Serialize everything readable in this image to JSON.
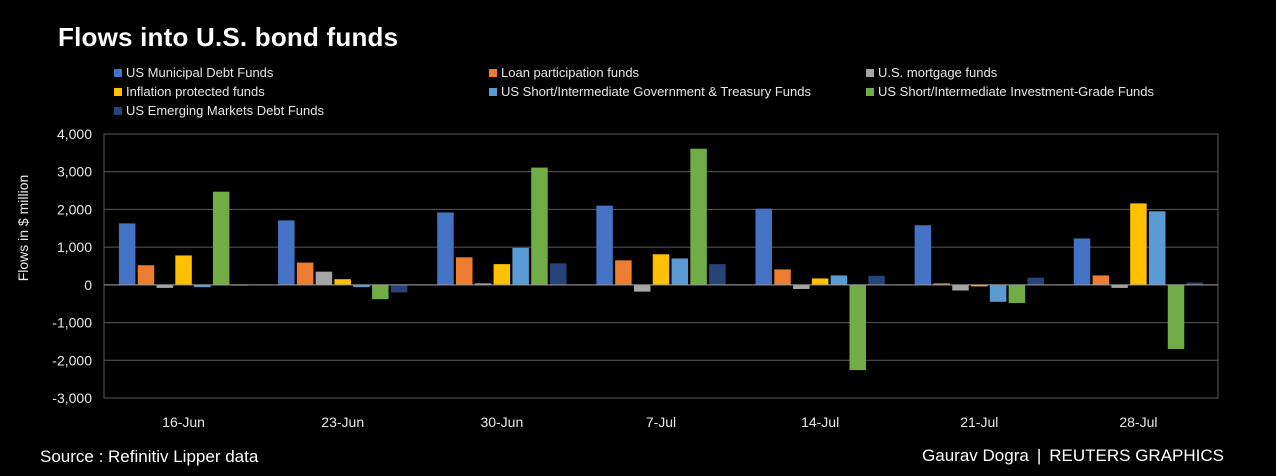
{
  "title": "Flows into U.S. bond funds",
  "footer": {
    "source": "Source : Refinitiv Lipper data",
    "author": "Gaurav Dogra",
    "separator": "|",
    "brand": "REUTERS GRAPHICS"
  },
  "colors": {
    "background": "#000000",
    "gridline": "#5a5a5a",
    "axis": "#9a9a9a",
    "text": "#ffffff"
  },
  "chart_data": {
    "type": "bar",
    "title": "Flows into U.S. bond funds",
    "xlabel": "",
    "ylabel": "Flows in $ million",
    "ylim": [
      -3000,
      4000
    ],
    "yticks": [
      -3000,
      -2000,
      -1000,
      0,
      1000,
      2000,
      3000,
      4000
    ],
    "ytick_labels": [
      "-3,000",
      "-2,000",
      "-1,000",
      "0",
      "1,000",
      "2,000",
      "3,000",
      "4,000"
    ],
    "grid": true,
    "legend_position": "top",
    "categories": [
      "16-Jun",
      "23-Jun",
      "30-Jun",
      "7-Jul",
      "14-Jul",
      "21-Jul",
      "28-Jul"
    ],
    "series": [
      {
        "name": "US Municipal Debt Funds",
        "color": "#4472C4",
        "values": [
          1630,
          1710,
          1920,
          2100,
          2020,
          1580,
          1230
        ]
      },
      {
        "name": "Loan participation funds",
        "color": "#ED7D31",
        "values": [
          520,
          590,
          730,
          650,
          410,
          40,
          250
        ]
      },
      {
        "name": "U.S. mortgage funds",
        "color": "#A5A5A5",
        "values": [
          -80,
          350,
          40,
          -180,
          -110,
          -150,
          -80
        ]
      },
      {
        "name": "Inflation protected funds",
        "color": "#FFC000",
        "values": [
          780,
          150,
          550,
          810,
          170,
          -40,
          2160
        ]
      },
      {
        "name": "US Short/Intermediate Government & Treasury Funds",
        "color": "#5B9BD5",
        "values": [
          -60,
          -60,
          980,
          700,
          250,
          -450,
          1950
        ]
      },
      {
        "name": "US Short/Intermediate Investment-Grade Funds",
        "color": "#70AD47",
        "values": [
          2470,
          -380,
          3110,
          3610,
          -2260,
          -480,
          -1700
        ]
      },
      {
        "name": "US Emerging Markets Debt Funds",
        "color": "#264478",
        "values": [
          -30,
          -200,
          570,
          550,
          240,
          190,
          60
        ]
      }
    ]
  }
}
